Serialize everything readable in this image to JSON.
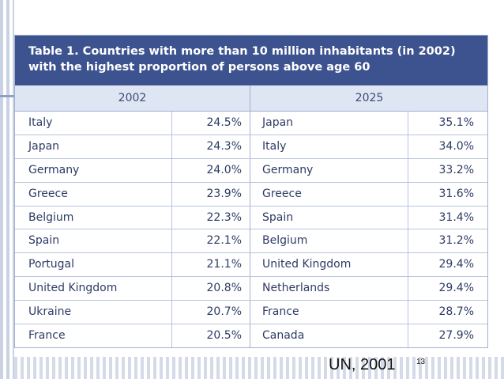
{
  "table": {
    "title": "Table 1. Countries with more than 10 million inhabitants (in 2002) with the highest proportion of persons above age 60",
    "headers": {
      "left": "2002",
      "right": "2025"
    },
    "rows": [
      {
        "left_country": "Italy",
        "left_value": "24.5%",
        "right_country": "Japan",
        "right_value": "35.1%"
      },
      {
        "left_country": "Japan",
        "left_value": "24.3%",
        "right_country": "Italy",
        "right_value": "34.0%"
      },
      {
        "left_country": "Germany",
        "left_value": "24.0%",
        "right_country": "Germany",
        "right_value": "33.2%"
      },
      {
        "left_country": "Greece",
        "left_value": "23.9%",
        "right_country": "Greece",
        "right_value": "31.6%"
      },
      {
        "left_country": "Belgium",
        "left_value": "22.3%",
        "right_country": "Spain",
        "right_value": "31.4%"
      },
      {
        "left_country": "Spain",
        "left_value": "22.1%",
        "right_country": "Belgium",
        "right_value": "31.2%"
      },
      {
        "left_country": "Portugal",
        "left_value": "21.1%",
        "right_country": "United Kingdom",
        "right_value": "29.4%"
      },
      {
        "left_country": "United Kingdom",
        "left_value": "20.8%",
        "right_country": "Netherlands",
        "right_value": "29.4%"
      },
      {
        "left_country": "Ukraine",
        "left_value": "20.7%",
        "right_country": "France",
        "right_value": "28.7%"
      },
      {
        "left_country": "France",
        "left_value": "20.5%",
        "right_country": "Canada",
        "right_value": "27.9%"
      }
    ]
  },
  "footer": {
    "source": "UN, 2001",
    "page_number": "13"
  },
  "colors": {
    "title_bg": "#3d538f",
    "header_bg": "#dfe6f3",
    "text": "#2d3b66"
  }
}
